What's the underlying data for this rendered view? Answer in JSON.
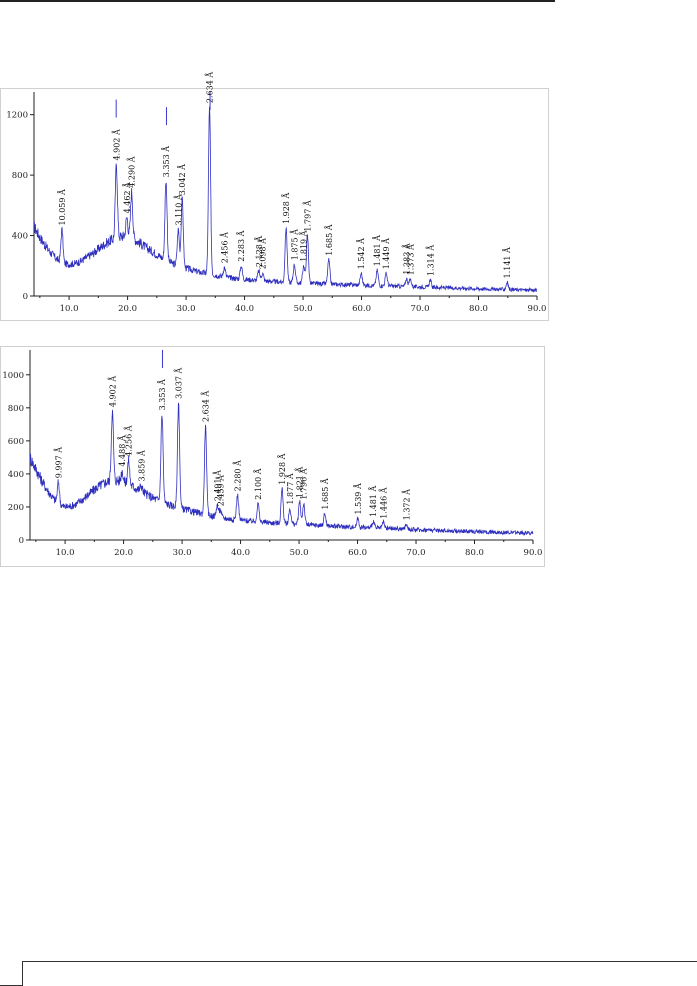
{
  "chart_data": [
    {
      "type": "line",
      "title": "",
      "xlabel": "",
      "ylabel": "",
      "xlim": [
        4,
        90
      ],
      "ylim": [
        0,
        1350
      ],
      "x_ticks": [
        "10.0",
        "20.0",
        "30.0",
        "40.0",
        "50.0",
        "60.0",
        "70.0",
        "80.0",
        "90.0"
      ],
      "y_ticks": [
        "0",
        "400",
        "800",
        "1200"
      ],
      "x_tick_values": [
        10,
        20,
        30,
        40,
        50,
        60,
        70,
        80,
        90
      ],
      "y_tick_values": [
        0,
        400,
        800,
        1200
      ],
      "color": "#2f2fbf",
      "reference_lines": [
        {
          "x": 18.05,
          "value": 1300
        },
        {
          "x": 26.65,
          "value": 1250
        },
        {
          "x": 34.1,
          "value": 1350
        }
      ],
      "background": [
        [
          4,
          460
        ],
        [
          5,
          390
        ],
        [
          6,
          330
        ],
        [
          7,
          280
        ],
        [
          8,
          240
        ],
        [
          9,
          215
        ],
        [
          10,
          210
        ],
        [
          11,
          215
        ],
        [
          12,
          230
        ],
        [
          13,
          255
        ],
        [
          14,
          280
        ],
        [
          15,
          310
        ],
        [
          16,
          340
        ],
        [
          17,
          365
        ],
        [
          18,
          385
        ],
        [
          19,
          395
        ],
        [
          20,
          395
        ],
        [
          21,
          380
        ],
        [
          22,
          355
        ],
        [
          23,
          325
        ],
        [
          24,
          300
        ],
        [
          25,
          275
        ],
        [
          26,
          250
        ],
        [
          27,
          230
        ],
        [
          28,
          210
        ],
        [
          30,
          185
        ],
        [
          32,
          160
        ],
        [
          34,
          145
        ],
        [
          36,
          130
        ],
        [
          38,
          118
        ],
        [
          40,
          110
        ],
        [
          45,
          95
        ],
        [
          50,
          85
        ],
        [
          55,
          78
        ],
        [
          60,
          72
        ],
        [
          65,
          66
        ],
        [
          70,
          60
        ],
        [
          75,
          54
        ],
        [
          80,
          48
        ],
        [
          85,
          43
        ],
        [
          90,
          38
        ]
      ],
      "peaks": [
        {
          "x": 8.78,
          "value": 440,
          "label": "10.059 Å"
        },
        {
          "x": 18.08,
          "value": 870,
          "label": "4.902 Å"
        },
        {
          "x": 19.88,
          "value": 520,
          "label": "4.462 Å"
        },
        {
          "x": 20.69,
          "value": 690,
          "label": "4.290 Å"
        },
        {
          "x": 26.57,
          "value": 760,
          "label": "3.353 Å"
        },
        {
          "x": 28.67,
          "value": 440,
          "label": "3.110 Å"
        },
        {
          "x": 29.34,
          "value": 640,
          "label": "3.042 Å"
        },
        {
          "x": 34.01,
          "value": 1250,
          "label": "2.634 Å"
        },
        {
          "x": 36.55,
          "value": 190,
          "label": "2.456 Å"
        },
        {
          "x": 39.43,
          "value": 200,
          "label": "2.283 Å"
        },
        {
          "x": 42.43,
          "value": 165,
          "label": "2.128 Å"
        },
        {
          "x": 43.08,
          "value": 150,
          "label": "2.098 Å"
        },
        {
          "x": 47.1,
          "value": 450,
          "label": "1.928 Å"
        },
        {
          "x": 48.52,
          "value": 210,
          "label": "1.875 Å"
        },
        {
          "x": 50.1,
          "value": 200,
          "label": "1.819 Å"
        },
        {
          "x": 50.75,
          "value": 400,
          "label": "1.797 Å"
        },
        {
          "x": 54.4,
          "value": 240,
          "label": "1.685 Å"
        },
        {
          "x": 59.95,
          "value": 150,
          "label": "1.542 Å"
        },
        {
          "x": 62.68,
          "value": 170,
          "label": "1.481 Å"
        },
        {
          "x": 64.22,
          "value": 150,
          "label": "1.449 Å"
        },
        {
          "x": 67.7,
          "value": 115,
          "label": "1.383 Å"
        },
        {
          "x": 68.35,
          "value": 110,
          "label": "1.373 Å"
        },
        {
          "x": 71.75,
          "value": 105,
          "label": "1.314 Å"
        },
        {
          "x": 84.9,
          "value": 90,
          "label": "1.141 Å"
        }
      ]
    },
    {
      "type": "line",
      "title": "",
      "xlabel": "",
      "ylabel": "",
      "xlim": [
        4,
        90
      ],
      "ylim": [
        0,
        1150
      ],
      "x_ticks": [
        "10.0",
        "20.0",
        "30.0",
        "40.0",
        "50.0",
        "60.0",
        "70.0",
        "80.0",
        "90.0"
      ],
      "y_ticks": [
        "0",
        "200",
        "400",
        "600",
        "800",
        "1000"
      ],
      "x_tick_values": [
        10,
        20,
        30,
        40,
        50,
        60,
        70,
        80,
        90
      ],
      "y_tick_values": [
        0,
        200,
        400,
        600,
        800,
        1000
      ],
      "color": "#2f2fbf",
      "reference_lines": [
        {
          "x": 26.65,
          "value": 1150
        }
      ],
      "background": [
        [
          4,
          500
        ],
        [
          5,
          430
        ],
        [
          6,
          360
        ],
        [
          7,
          300
        ],
        [
          8,
          250
        ],
        [
          9,
          215
        ],
        [
          10,
          200
        ],
        [
          11,
          205
        ],
        [
          12,
          220
        ],
        [
          13,
          245
        ],
        [
          14,
          275
        ],
        [
          15,
          305
        ],
        [
          16,
          330
        ],
        [
          17,
          350
        ],
        [
          18,
          360
        ],
        [
          19,
          360
        ],
        [
          20,
          350
        ],
        [
          21,
          335
        ],
        [
          22,
          315
        ],
        [
          23,
          295
        ],
        [
          24,
          275
        ],
        [
          25,
          255
        ],
        [
          26,
          240
        ],
        [
          27,
          225
        ],
        [
          28,
          210
        ],
        [
          30,
          190
        ],
        [
          32,
          170
        ],
        [
          34,
          155
        ],
        [
          36,
          140
        ],
        [
          38,
          128
        ],
        [
          40,
          120
        ],
        [
          45,
          105
        ],
        [
          50,
          95
        ],
        [
          55,
          85
        ],
        [
          60,
          77
        ],
        [
          65,
          70
        ],
        [
          70,
          63
        ],
        [
          75,
          57
        ],
        [
          80,
          51
        ],
        [
          85,
          46
        ],
        [
          90,
          42
        ]
      ],
      "peaks": [
        {
          "x": 8.86,
          "value": 350,
          "label": "9.997 Å"
        },
        {
          "x": 18.08,
          "value": 780,
          "label": "4.902 Å"
        },
        {
          "x": 19.76,
          "value": 420,
          "label": "4.488 Å"
        },
        {
          "x": 20.85,
          "value": 480,
          "label": "4.256 Å"
        },
        {
          "x": 23.03,
          "value": 330,
          "label": "3.859 Å"
        },
        {
          "x": 26.57,
          "value": 760,
          "label": "3.353 Å"
        },
        {
          "x": 29.4,
          "value": 830,
          "label": "3.037 Å"
        },
        {
          "x": 34.01,
          "value": 690,
          "label": "2.634 Å"
        },
        {
          "x": 36.02,
          "value": 210,
          "label": "2.491 Å"
        },
        {
          "x": 36.54,
          "value": 180,
          "label": "2.459 Å"
        },
        {
          "x": 39.49,
          "value": 270,
          "label": "2.280 Å"
        },
        {
          "x": 42.99,
          "value": 220,
          "label": "2.100 Å"
        },
        {
          "x": 47.1,
          "value": 310,
          "label": "1.928 Å"
        },
        {
          "x": 48.44,
          "value": 190,
          "label": "1.877 Å"
        },
        {
          "x": 50.1,
          "value": 230,
          "label": "1.821 Å"
        },
        {
          "x": 50.8,
          "value": 220,
          "label": "1.796 Å"
        },
        {
          "x": 54.4,
          "value": 160,
          "label": "1.685 Å"
        },
        {
          "x": 60.05,
          "value": 130,
          "label": "1.539 Å"
        },
        {
          "x": 62.68,
          "value": 115,
          "label": "1.481 Å"
        },
        {
          "x": 64.4,
          "value": 105,
          "label": "1.446 Å"
        },
        {
          "x": 68.35,
          "value": 95,
          "label": "1.372 Å"
        }
      ]
    }
  ]
}
